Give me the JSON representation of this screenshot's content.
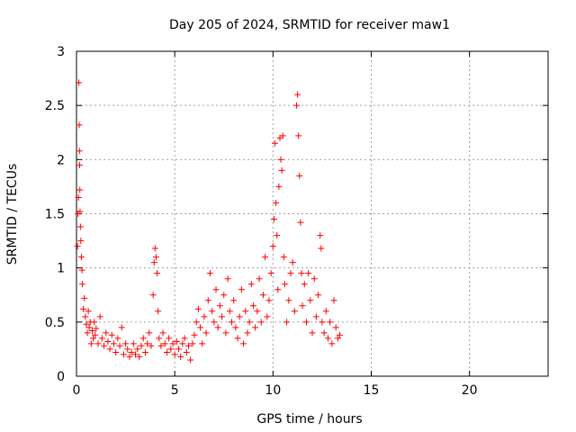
{
  "chart_data": {
    "type": "scatter",
    "title": "Day 205 of 2024, SRMTID for receiver maw1",
    "xlabel": "GPS time / hours",
    "ylabel": "SRMTID / TECUs",
    "xlim": [
      0,
      24
    ],
    "ylim": [
      0,
      3
    ],
    "xticks": [
      "0",
      "5",
      "10",
      "15",
      "20"
    ],
    "yticks": [
      "0",
      "0.5",
      "1",
      "1.5",
      "2",
      "2.5",
      "3"
    ],
    "grid": true,
    "marker": "+",
    "color": "#ff0000",
    "series": [
      {
        "name": "maw1",
        "points": [
          [
            0.05,
            1.2
          ],
          [
            0.08,
            1.5
          ],
          [
            0.1,
            1.65
          ],
          [
            0.12,
            2.71
          ],
          [
            0.14,
            2.32
          ],
          [
            0.15,
            2.08
          ],
          [
            0.16,
            1.95
          ],
          [
            0.17,
            1.72
          ],
          [
            0.18,
            1.52
          ],
          [
            0.2,
            1.38
          ],
          [
            0.22,
            1.25
          ],
          [
            0.25,
            1.1
          ],
          [
            0.28,
            0.98
          ],
          [
            0.3,
            0.85
          ],
          [
            0.35,
            0.62
          ],
          [
            0.4,
            0.72
          ],
          [
            0.45,
            0.55
          ],
          [
            0.5,
            0.48
          ],
          [
            0.55,
            0.4
          ],
          [
            0.6,
            0.6
          ],
          [
            0.65,
            0.45
          ],
          [
            0.7,
            0.5
          ],
          [
            0.75,
            0.3
          ],
          [
            0.8,
            0.42
          ],
          [
            0.85,
            0.35
          ],
          [
            0.9,
            0.5
          ],
          [
            0.95,
            0.38
          ],
          [
            1.0,
            0.44
          ],
          [
            1.1,
            0.3
          ],
          [
            1.2,
            0.55
          ],
          [
            1.3,
            0.35
          ],
          [
            1.4,
            0.28
          ],
          [
            1.5,
            0.4
          ],
          [
            1.6,
            0.32
          ],
          [
            1.7,
            0.25
          ],
          [
            1.8,
            0.38
          ],
          [
            1.9,
            0.3
          ],
          [
            2.0,
            0.22
          ],
          [
            2.1,
            0.35
          ],
          [
            2.2,
            0.28
          ],
          [
            2.3,
            0.45
          ],
          [
            2.4,
            0.2
          ],
          [
            2.5,
            0.3
          ],
          [
            2.6,
            0.25
          ],
          [
            2.7,
            0.18
          ],
          [
            2.8,
            0.22
          ],
          [
            2.9,
            0.3
          ],
          [
            3.0,
            0.2
          ],
          [
            3.1,
            0.25
          ],
          [
            3.2,
            0.18
          ],
          [
            3.3,
            0.28
          ],
          [
            3.4,
            0.35
          ],
          [
            3.5,
            0.22
          ],
          [
            3.6,
            0.3
          ],
          [
            3.7,
            0.4
          ],
          [
            3.8,
            0.28
          ],
          [
            3.9,
            0.75
          ],
          [
            3.95,
            1.05
          ],
          [
            4.0,
            1.18
          ],
          [
            4.05,
            1.1
          ],
          [
            4.1,
            0.95
          ],
          [
            4.15,
            0.6
          ],
          [
            4.2,
            0.35
          ],
          [
            4.3,
            0.28
          ],
          [
            4.4,
            0.4
          ],
          [
            4.5,
            0.3
          ],
          [
            4.6,
            0.22
          ],
          [
            4.7,
            0.35
          ],
          [
            4.8,
            0.25
          ],
          [
            4.9,
            0.3
          ],
          [
            5.0,
            0.2
          ],
          [
            5.1,
            0.32
          ],
          [
            5.2,
            0.25
          ],
          [
            5.3,
            0.18
          ],
          [
            5.4,
            0.3
          ],
          [
            5.5,
            0.35
          ],
          [
            5.6,
            0.22
          ],
          [
            5.7,
            0.28
          ],
          [
            5.8,
            0.15
          ],
          [
            5.9,
            0.3
          ],
          [
            6.0,
            0.38
          ],
          [
            6.1,
            0.5
          ],
          [
            6.2,
            0.62
          ],
          [
            6.3,
            0.45
          ],
          [
            6.4,
            0.3
          ],
          [
            6.5,
            0.55
          ],
          [
            6.6,
            0.4
          ],
          [
            6.7,
            0.7
          ],
          [
            6.8,
            0.95
          ],
          [
            6.9,
            0.6
          ],
          [
            7.0,
            0.5
          ],
          [
            7.1,
            0.8
          ],
          [
            7.2,
            0.45
          ],
          [
            7.3,
            0.65
          ],
          [
            7.4,
            0.55
          ],
          [
            7.5,
            0.75
          ],
          [
            7.6,
            0.4
          ],
          [
            7.7,
            0.9
          ],
          [
            7.8,
            0.6
          ],
          [
            7.9,
            0.5
          ],
          [
            8.0,
            0.7
          ],
          [
            8.1,
            0.45
          ],
          [
            8.2,
            0.35
          ],
          [
            8.3,
            0.55
          ],
          [
            8.4,
            0.8
          ],
          [
            8.5,
            0.3
          ],
          [
            8.6,
            0.6
          ],
          [
            8.7,
            0.4
          ],
          [
            8.8,
            0.5
          ],
          [
            8.9,
            0.85
          ],
          [
            9.0,
            0.65
          ],
          [
            9.1,
            0.45
          ],
          [
            9.2,
            0.6
          ],
          [
            9.3,
            0.9
          ],
          [
            9.4,
            0.5
          ],
          [
            9.5,
            0.75
          ],
          [
            9.6,
            1.1
          ],
          [
            9.7,
            0.55
          ],
          [
            9.8,
            0.7
          ],
          [
            9.9,
            0.95
          ],
          [
            10.0,
            1.2
          ],
          [
            10.05,
            1.45
          ],
          [
            10.1,
            2.15
          ],
          [
            10.15,
            1.6
          ],
          [
            10.2,
            1.3
          ],
          [
            10.25,
            0.8
          ],
          [
            10.3,
            1.75
          ],
          [
            10.35,
            2.2
          ],
          [
            10.4,
            2.0
          ],
          [
            10.45,
            1.9
          ],
          [
            10.5,
            2.22
          ],
          [
            10.55,
            1.1
          ],
          [
            10.6,
            0.85
          ],
          [
            10.7,
            0.5
          ],
          [
            10.8,
            0.7
          ],
          [
            10.9,
            0.95
          ],
          [
            11.0,
            1.05
          ],
          [
            11.1,
            0.6
          ],
          [
            11.2,
            2.5
          ],
          [
            11.25,
            2.6
          ],
          [
            11.3,
            2.22
          ],
          [
            11.35,
            1.85
          ],
          [
            11.4,
            1.42
          ],
          [
            11.45,
            0.95
          ],
          [
            11.5,
            0.65
          ],
          [
            11.6,
            0.85
          ],
          [
            11.7,
            0.5
          ],
          [
            11.8,
            0.95
          ],
          [
            11.9,
            0.7
          ],
          [
            12.0,
            0.4
          ],
          [
            12.1,
            0.9
          ],
          [
            12.2,
            0.55
          ],
          [
            12.3,
            0.75
          ],
          [
            12.4,
            1.3
          ],
          [
            12.45,
            1.18
          ],
          [
            12.5,
            0.5
          ],
          [
            12.6,
            0.4
          ],
          [
            12.7,
            0.6
          ],
          [
            12.8,
            0.35
          ],
          [
            12.9,
            0.5
          ],
          [
            13.0,
            0.3
          ],
          [
            13.1,
            0.7
          ],
          [
            13.2,
            0.45
          ],
          [
            13.3,
            0.35
          ],
          [
            13.4,
            0.38
          ]
        ]
      }
    ]
  }
}
